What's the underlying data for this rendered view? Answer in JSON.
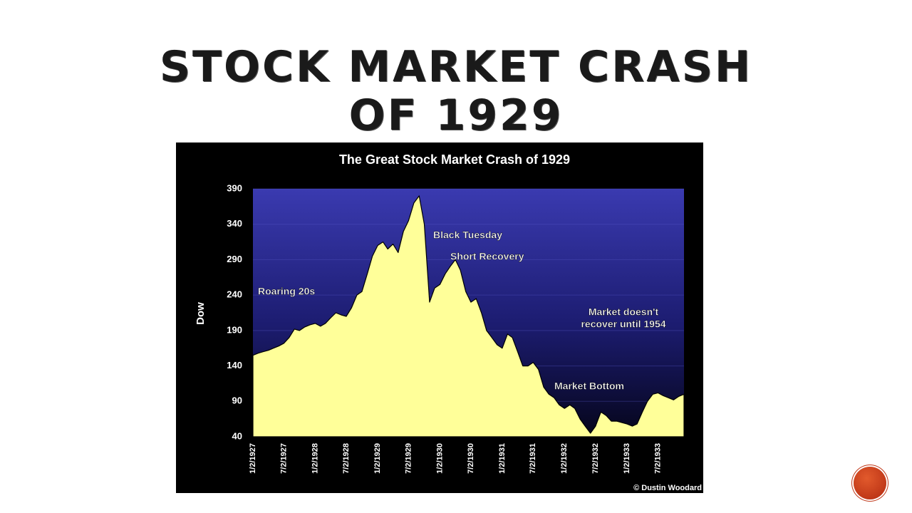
{
  "slide_title": [
    "Stock Market Crash",
    "of 1929"
  ],
  "chart_data": {
    "type": "area",
    "title": "The Great Stock Market Crash of 1929",
    "y_label": "Dow",
    "credit": "© Dustin Woodard",
    "x": [
      "1/2/1927",
      "2/2/1927",
      "3/2/1927",
      "4/2/1927",
      "5/2/1927",
      "6/2/1927",
      "7/2/1927",
      "8/2/1927",
      "9/2/1927",
      "10/2/1927",
      "11/2/1927",
      "12/2/1927",
      "1/2/1928",
      "2/2/1928",
      "3/2/1928",
      "4/2/1928",
      "5/2/1928",
      "6/2/1928",
      "7/2/1928",
      "8/2/1928",
      "9/2/1928",
      "10/2/1928",
      "11/2/1928",
      "12/2/1928",
      "1/2/1929",
      "2/2/1929",
      "3/2/1929",
      "4/2/1929",
      "5/2/1929",
      "6/2/1929",
      "7/2/1929",
      "8/2/1929",
      "9/2/1929",
      "10/2/1929",
      "11/2/1929",
      "12/2/1929",
      "1/2/1930",
      "2/2/1930",
      "3/2/1930",
      "4/2/1930",
      "5/2/1930",
      "6/2/1930",
      "7/2/1930",
      "8/2/1930",
      "9/2/1930",
      "10/2/1930",
      "11/2/1930",
      "12/2/1930",
      "1/2/1931",
      "2/2/1931",
      "3/2/1931",
      "4/2/1931",
      "5/2/1931",
      "6/2/1931",
      "7/2/1931",
      "8/2/1931",
      "9/2/1931",
      "10/2/1931",
      "11/2/1931",
      "12/2/1931",
      "1/2/1932",
      "2/2/1932",
      "3/2/1932",
      "4/2/1932",
      "5/2/1932",
      "6/2/1932",
      "7/2/1932",
      "8/2/1932",
      "9/2/1932",
      "10/2/1932",
      "11/2/1932",
      "12/2/1932",
      "1/2/1933",
      "2/2/1933",
      "3/2/1933",
      "4/2/1933",
      "5/2/1933",
      "6/2/1933",
      "7/2/1933",
      "8/2/1933",
      "9/2/1933",
      "10/2/1933",
      "11/2/1933",
      "12/2/1933"
    ],
    "series": [
      {
        "name": "Dow",
        "color": "#ffff99",
        "values": [
          155,
          158,
          160,
          162,
          165,
          168,
          172,
          180,
          192,
          190,
          195,
          198,
          200,
          196,
          200,
          208,
          215,
          212,
          210,
          222,
          240,
          245,
          270,
          295,
          310,
          315,
          305,
          312,
          300,
          330,
          345,
          370,
          380,
          340,
          230,
          250,
          255,
          270,
          280,
          290,
          275,
          245,
          230,
          235,
          215,
          190,
          180,
          170,
          165,
          185,
          180,
          160,
          140,
          140,
          145,
          135,
          110,
          100,
          95,
          85,
          80,
          85,
          80,
          65,
          55,
          45,
          55,
          75,
          70,
          62,
          62,
          60,
          58,
          55,
          58,
          75,
          90,
          100,
          102,
          98,
          95,
          92,
          97,
          100
        ]
      }
    ],
    "xlim": [
      "1/2/1927",
      "12/2/1933"
    ],
    "xticks": [
      "1/2/1927",
      "7/2/1927",
      "1/2/1928",
      "7/2/1928",
      "1/2/1929",
      "7/2/1929",
      "1/2/1930",
      "7/2/1930",
      "1/2/1931",
      "7/2/1931",
      "1/2/1932",
      "7/2/1932",
      "1/2/1933",
      "7/2/1933"
    ],
    "ylim": [
      40,
      390
    ],
    "yticks": [
      40,
      90,
      140,
      190,
      240,
      290,
      340,
      390
    ],
    "grid": true,
    "annotations": [
      "Roaring 20s",
      "Black Tuesday",
      "Short Recovery",
      "Market doesn't",
      "recover until 1954",
      "Market Bottom"
    ]
  }
}
